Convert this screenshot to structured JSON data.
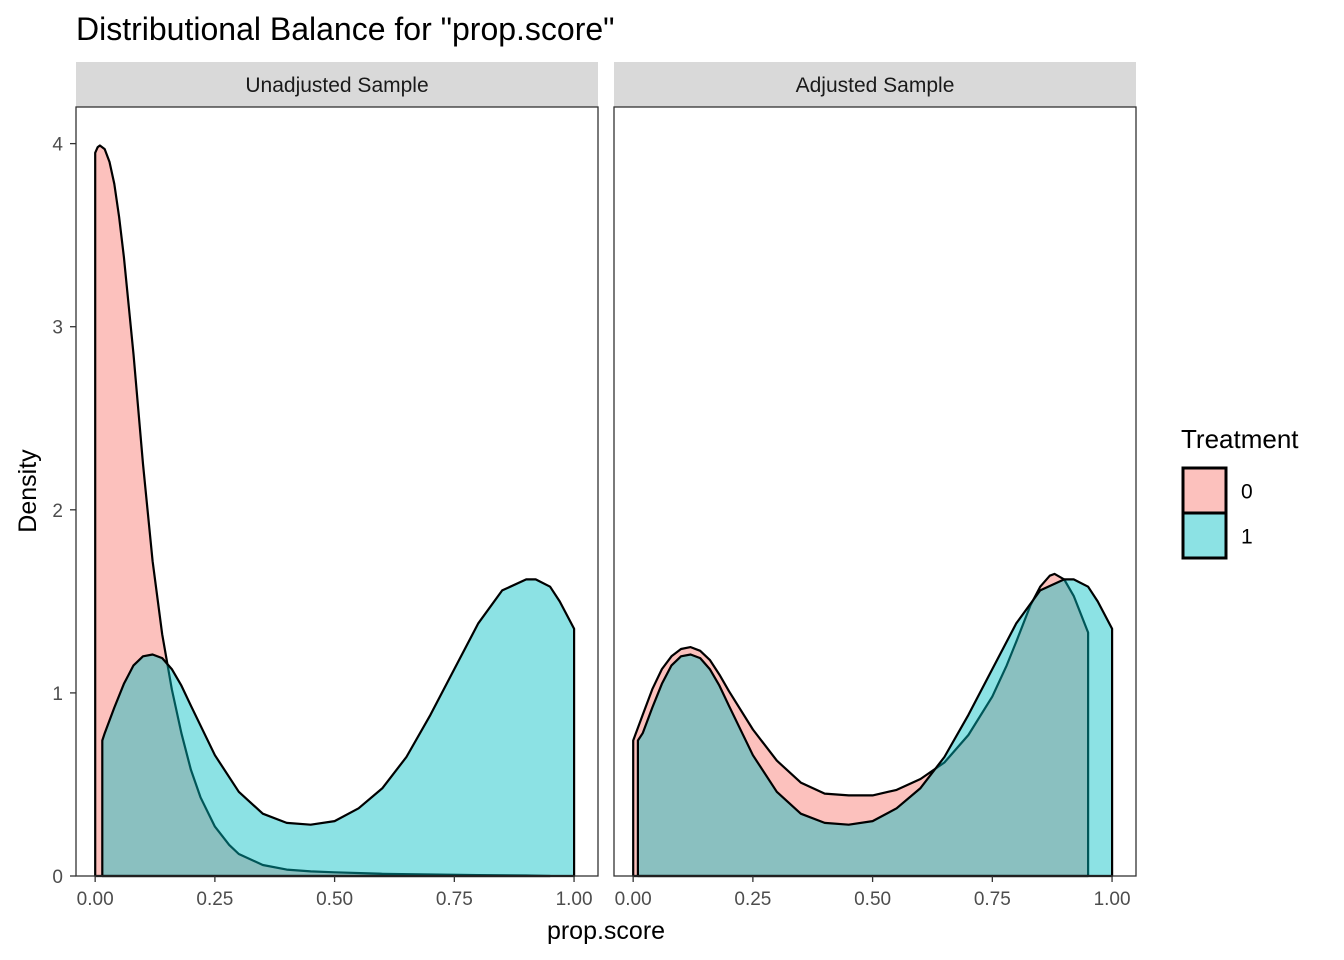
{
  "chart_data": {
    "type": "area",
    "subtype": "density",
    "title": "Distributional Balance for \"prop.score\"",
    "xlabel": "prop.score",
    "ylabel": "Density",
    "xlim": [
      -0.04,
      1.05
    ],
    "ylim": [
      0,
      4.2
    ],
    "x_ticks": [
      0,
      0.25,
      0.5,
      0.75,
      1
    ],
    "x_tick_labels": [
      "0.00",
      "0.25",
      "0.50",
      "0.75",
      "1.00"
    ],
    "y_ticks": [
      0,
      1,
      2,
      3,
      4
    ],
    "y_tick_labels": [
      "0",
      "1",
      "2",
      "3",
      "4"
    ],
    "grid": false,
    "legend": {
      "title": "Treatment",
      "position": "right",
      "items": [
        {
          "label": "0",
          "color": "#F8766D"
        },
        {
          "label": "1",
          "color": "#00BFC4"
        }
      ]
    },
    "facets": [
      {
        "label": "Unadjusted Sample",
        "series": [
          {
            "name": "0",
            "color": "#F8766D",
            "x": [
              0.0,
              0.005,
              0.01,
              0.02,
              0.03,
              0.04,
              0.05,
              0.06,
              0.08,
              0.1,
              0.12,
              0.14,
              0.16,
              0.18,
              0.2,
              0.22,
              0.25,
              0.28,
              0.3,
              0.35,
              0.4,
              0.45,
              0.5,
              0.6,
              0.7,
              0.8,
              0.9,
              0.95
            ],
            "y": [
              3.95,
              3.98,
              3.99,
              3.97,
              3.9,
              3.78,
              3.6,
              3.38,
              2.85,
              2.25,
              1.72,
              1.32,
              1.02,
              0.78,
              0.58,
              0.43,
              0.27,
              0.17,
              0.12,
              0.06,
              0.035,
              0.025,
              0.02,
              0.012,
              0.008,
              0.005,
              0.003,
              0.0
            ]
          },
          {
            "name": "1",
            "color": "#00BFC4",
            "x": [
              0.015,
              0.02,
              0.04,
              0.06,
              0.08,
              0.1,
              0.12,
              0.14,
              0.16,
              0.18,
              0.2,
              0.25,
              0.3,
              0.35,
              0.4,
              0.45,
              0.5,
              0.55,
              0.6,
              0.65,
              0.7,
              0.75,
              0.8,
              0.85,
              0.9,
              0.92,
              0.95,
              0.97,
              1.0
            ],
            "y": [
              0.74,
              0.78,
              0.92,
              1.05,
              1.15,
              1.2,
              1.21,
              1.19,
              1.13,
              1.04,
              0.93,
              0.66,
              0.46,
              0.34,
              0.29,
              0.28,
              0.3,
              0.37,
              0.48,
              0.65,
              0.88,
              1.13,
              1.38,
              1.56,
              1.62,
              1.62,
              1.58,
              1.5,
              1.35
            ]
          }
        ]
      },
      {
        "label": "Adjusted Sample",
        "series": [
          {
            "name": "0",
            "color": "#F8766D",
            "x": [
              0.0,
              0.02,
              0.04,
              0.06,
              0.08,
              0.1,
              0.12,
              0.14,
              0.16,
              0.18,
              0.2,
              0.25,
              0.3,
              0.35,
              0.4,
              0.45,
              0.5,
              0.55,
              0.6,
              0.65,
              0.7,
              0.75,
              0.78,
              0.8,
              0.83,
              0.85,
              0.87,
              0.88,
              0.9,
              0.92,
              0.95
            ],
            "y": [
              0.74,
              0.88,
              1.02,
              1.13,
              1.2,
              1.24,
              1.25,
              1.23,
              1.18,
              1.1,
              1.01,
              0.8,
              0.63,
              0.51,
              0.45,
              0.44,
              0.44,
              0.47,
              0.53,
              0.62,
              0.77,
              0.98,
              1.15,
              1.28,
              1.48,
              1.58,
              1.64,
              1.65,
              1.62,
              1.53,
              1.33
            ]
          },
          {
            "name": "1",
            "color": "#00BFC4",
            "x": [
              0.01,
              0.02,
              0.04,
              0.06,
              0.08,
              0.1,
              0.12,
              0.14,
              0.16,
              0.18,
              0.2,
              0.25,
              0.3,
              0.35,
              0.4,
              0.45,
              0.5,
              0.55,
              0.6,
              0.65,
              0.7,
              0.75,
              0.8,
              0.85,
              0.9,
              0.92,
              0.95,
              0.97,
              1.0
            ],
            "y": [
              0.74,
              0.78,
              0.92,
              1.05,
              1.15,
              1.2,
              1.21,
              1.19,
              1.13,
              1.04,
              0.93,
              0.66,
              0.46,
              0.34,
              0.29,
              0.28,
              0.3,
              0.37,
              0.48,
              0.65,
              0.88,
              1.13,
              1.38,
              1.56,
              1.62,
              1.62,
              1.58,
              1.5,
              1.35
            ]
          }
        ]
      }
    ]
  }
}
